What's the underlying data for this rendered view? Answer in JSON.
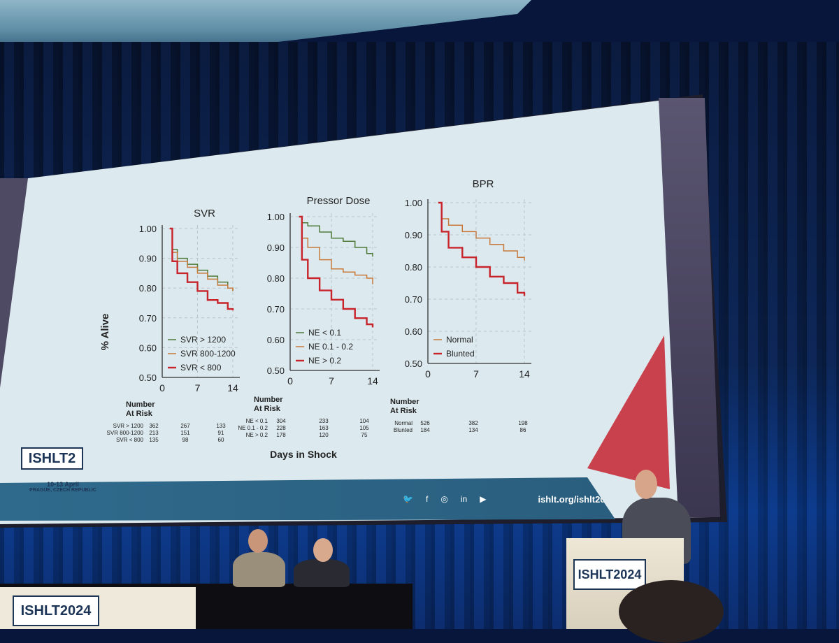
{
  "slide": {
    "x_axis_title": "Days in Shock",
    "y_axis_title": "% Alive",
    "footer_url": "ishlt.org/ishlt2024",
    "social_icons": [
      "twitter-icon",
      "facebook-icon",
      "instagram-icon",
      "linkedin-icon",
      "youtube-icon"
    ],
    "social_glyphs": [
      "🐦",
      "f",
      "◎",
      "in",
      "▶"
    ],
    "logo_text": "ISHLT2",
    "logo_dates": "10-13 April",
    "logo_location": "PRAGUE, CZECH REPUBLIC"
  },
  "venue": {
    "banner_logo": "ISHLT2024",
    "podium_logo": "ISHLT2024"
  },
  "colors": {
    "green": "#4f7a3a",
    "orange": "#c87a3c",
    "red": "#c8242c",
    "slide_bg": "#dce9ee",
    "footer": "#2f6a8c"
  },
  "chart_data": [
    {
      "type": "line",
      "title": "SVR",
      "xlabel": "Days in Shock",
      "ylabel": "% Alive",
      "xlim": [
        0,
        14
      ],
      "ylim": [
        0.5,
        1.0
      ],
      "x_ticks": [
        "0",
        "7",
        "14"
      ],
      "y_ticks": [
        "0.50",
        "0.60",
        "0.70",
        "0.80",
        "0.90",
        "1.00"
      ],
      "legend": "bottom-left",
      "series": [
        {
          "name": "SVR > 1200",
          "color": "#4f7a3a",
          "x": [
            1.5,
            2,
            3,
            5,
            7,
            9,
            11,
            13,
            14
          ],
          "y": [
            1.0,
            0.93,
            0.9,
            0.88,
            0.86,
            0.84,
            0.82,
            0.8,
            0.79
          ]
        },
        {
          "name": "SVR 800-1200",
          "color": "#c87a3c",
          "x": [
            1.5,
            2,
            3,
            5,
            7,
            9,
            11,
            13,
            14
          ],
          "y": [
            1.0,
            0.92,
            0.89,
            0.87,
            0.85,
            0.83,
            0.81,
            0.8,
            0.79
          ]
        },
        {
          "name": "SVR < 800",
          "color": "#c8242c",
          "x": [
            1.5,
            2,
            3,
            5,
            7,
            9,
            11,
            13,
            14
          ],
          "y": [
            1.0,
            0.89,
            0.85,
            0.82,
            0.79,
            0.76,
            0.75,
            0.73,
            0.725
          ]
        }
      ],
      "at_risk": {
        "header": "Number At Risk",
        "columns": [
          "0",
          "7",
          "14"
        ],
        "rows": [
          {
            "label": "SVR > 1200",
            "values": [
              "362",
              "267",
              "133"
            ]
          },
          {
            "label": "SVR 800-1200",
            "values": [
              "213",
              "151",
              "91"
            ]
          },
          {
            "label": "SVR < 800",
            "values": [
              "135",
              "98",
              "60"
            ]
          }
        ]
      }
    },
    {
      "type": "line",
      "title": "Pressor Dose",
      "xlabel": "Days in Shock",
      "ylabel": "% Alive",
      "xlim": [
        0,
        14
      ],
      "ylim": [
        0.5,
        1.0
      ],
      "x_ticks": [
        "0",
        "7",
        "14"
      ],
      "y_ticks": [
        "0.50",
        "0.60",
        "0.70",
        "0.80",
        "0.90",
        "1.00"
      ],
      "legend": "bottom-left",
      "series": [
        {
          "name": "NE < 0.1",
          "color": "#4f7a3a",
          "x": [
            1.5,
            2,
            3,
            5,
            7,
            9,
            11,
            13,
            14
          ],
          "y": [
            1.0,
            0.98,
            0.97,
            0.95,
            0.93,
            0.92,
            0.9,
            0.88,
            0.87
          ]
        },
        {
          "name": "NE 0.1 - 0.2",
          "color": "#c87a3c",
          "x": [
            1.5,
            2,
            3,
            5,
            7,
            9,
            11,
            13,
            14
          ],
          "y": [
            1.0,
            0.93,
            0.9,
            0.86,
            0.83,
            0.82,
            0.81,
            0.8,
            0.78
          ]
        },
        {
          "name": "NE > 0.2",
          "color": "#c8242c",
          "x": [
            1.5,
            2,
            3,
            5,
            7,
            9,
            11,
            13,
            14
          ],
          "y": [
            1.0,
            0.86,
            0.8,
            0.76,
            0.73,
            0.7,
            0.67,
            0.65,
            0.64
          ]
        }
      ],
      "at_risk": {
        "header": "Number At Risk",
        "columns": [
          "0",
          "7",
          "14"
        ],
        "rows": [
          {
            "label": "NE < 0.1",
            "values": [
              "304",
              "233",
              "104"
            ]
          },
          {
            "label": "NE 0.1 - 0.2",
            "values": [
              "228",
              "163",
              "105"
            ]
          },
          {
            "label": "NE > 0.2",
            "values": [
              "178",
              "120",
              "75"
            ]
          }
        ]
      }
    },
    {
      "type": "line",
      "title": "BPR",
      "xlabel": "Days in Shock",
      "ylabel": "% Alive",
      "xlim": [
        0,
        14
      ],
      "ylim": [
        0.5,
        1.0
      ],
      "x_ticks": [
        "0",
        "7",
        "14"
      ],
      "y_ticks": [
        "0.50",
        "0.60",
        "0.70",
        "0.80",
        "0.90",
        "1.00"
      ],
      "legend": "bottom-left",
      "series": [
        {
          "name": "Normal",
          "color": "#c87a3c",
          "x": [
            1.5,
            2,
            3,
            5,
            7,
            9,
            11,
            13,
            14
          ],
          "y": [
            1.0,
            0.95,
            0.93,
            0.91,
            0.89,
            0.87,
            0.85,
            0.83,
            0.82
          ]
        },
        {
          "name": "Blunted",
          "color": "#c8242c",
          "x": [
            1.5,
            2,
            3,
            5,
            7,
            9,
            11,
            13,
            14
          ],
          "y": [
            1.0,
            0.91,
            0.86,
            0.83,
            0.8,
            0.77,
            0.75,
            0.72,
            0.71
          ]
        }
      ],
      "at_risk": {
        "header": "Number At Risk",
        "columns": [
          "0",
          "7",
          "14"
        ],
        "rows": [
          {
            "label": "Normal",
            "values": [
              "526",
              "382",
              "198"
            ]
          },
          {
            "label": "Blunted",
            "values": [
              "184",
              "134",
              "86"
            ]
          }
        ]
      }
    }
  ]
}
